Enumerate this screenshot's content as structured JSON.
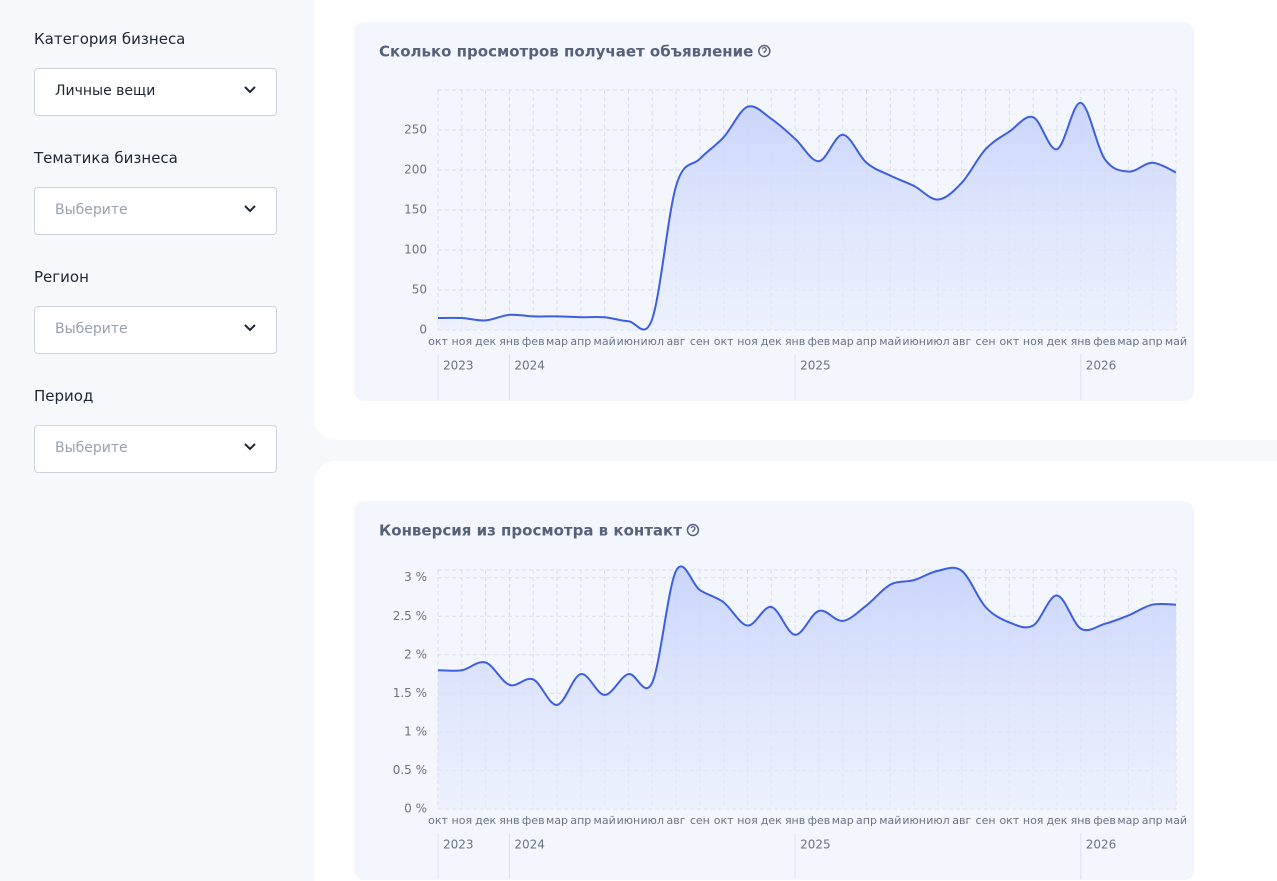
{
  "sidebar": {
    "fields": [
      {
        "label": "Категория бизнеса",
        "value": "Личные вещи"
      },
      {
        "label": "Тематика бизнеса",
        "placeholder": "Выберите"
      },
      {
        "label": "Регион",
        "placeholder": "Выберите"
      },
      {
        "label": "Период",
        "placeholder": "Выберите"
      }
    ]
  },
  "chart_data": [
    {
      "type": "line",
      "title": "Сколько просмотров получает объявление",
      "categories": [
        "окт",
        "ноя",
        "дек",
        "янв",
        "фев",
        "мар",
        "апр",
        "май",
        "июн",
        "июл",
        "авг",
        "сен",
        "окт",
        "ноя",
        "дек",
        "янв",
        "фев",
        "мар",
        "апр",
        "май",
        "июн",
        "июл",
        "авг",
        "сен",
        "окт",
        "ноя",
        "дек",
        "янв",
        "фев",
        "мар",
        "апр",
        "май"
      ],
      "years": [
        "2023",
        "2024",
        "2025",
        "2026"
      ],
      "values": [
        15,
        15,
        12,
        19,
        17,
        17,
        16,
        16,
        11,
        14,
        180,
        214,
        241,
        279,
        264,
        239,
        211,
        244,
        209,
        193,
        180,
        163,
        184,
        226,
        248,
        266,
        226,
        284,
        214,
        198,
        209,
        197
      ],
      "color": "#3d5fe0",
      "ylim": [
        0,
        300
      ],
      "yticks": [
        0,
        50,
        100,
        150,
        200,
        250
      ],
      "grid": true
    },
    {
      "type": "line",
      "title": "Конверсия из просмотра в контакт",
      "categories": [
        "окт",
        "ноя",
        "дек",
        "янв",
        "фев",
        "мар",
        "апр",
        "май",
        "июн",
        "июл",
        "авг",
        "сен",
        "окт",
        "ноя",
        "дек",
        "янв",
        "фев",
        "мар",
        "апр",
        "май",
        "июн",
        "июл",
        "авг",
        "сен",
        "окт",
        "ноя",
        "дек",
        "янв",
        "фев",
        "мар",
        "апр",
        "май"
      ],
      "years": [
        "2023",
        "2024",
        "2025",
        "2026"
      ],
      "values": [
        1.8,
        1.8,
        1.9,
        1.61,
        1.68,
        1.35,
        1.75,
        1.48,
        1.75,
        1.64,
        3.09,
        2.84,
        2.68,
        2.38,
        2.62,
        2.26,
        2.57,
        2.44,
        2.64,
        2.91,
        2.97,
        3.09,
        3.09,
        2.62,
        2.42,
        2.38,
        2.77,
        2.34,
        2.4,
        2.51,
        2.65,
        2.65
      ],
      "color": "#3d5fe0",
      "ylim": [
        0,
        3.1
      ],
      "yticks": [
        {
          "value": 0,
          "label": "0 %"
        },
        {
          "value": 0.5,
          "label": "0.5 %"
        },
        {
          "value": 1,
          "label": "1 %"
        },
        {
          "value": 1.5,
          "label": "1.5 %"
        },
        {
          "value": 2,
          "label": "2 %"
        },
        {
          "value": 2.5,
          "label": "2.5 %"
        },
        {
          "value": 3,
          "label": "3 %"
        }
      ],
      "grid": true
    }
  ]
}
